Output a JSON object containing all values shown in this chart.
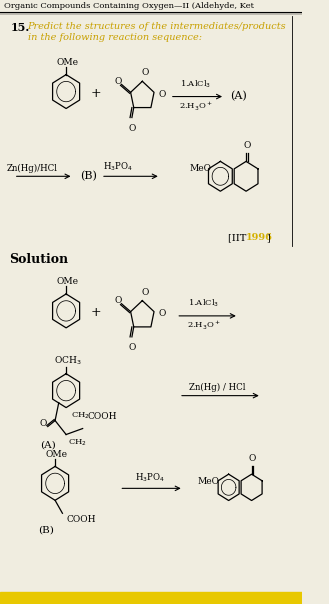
{
  "bg": "#f0ede0",
  "title": "Organic Compounds Containing Oxygen—II (Aldehyde, Ket",
  "q_num": "15.",
  "q_color": "#c8a000",
  "q_line1": "Predict the structures of the intermediates/products",
  "q_line2": "in the following reaction sequence:",
  "iit_text": "[IIT ",
  "iit_year": "1996",
  "iit_year_color": "#d4b000",
  "iit_close": "]",
  "sol_label": "Solution"
}
